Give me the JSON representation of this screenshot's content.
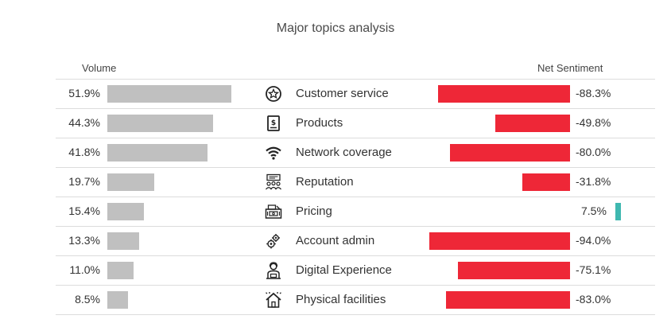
{
  "colors": {
    "volume_bar": "#c0c0c0",
    "negative": "#ee2737",
    "positive": "#3fb8b0",
    "divider": "#dcdcdc"
  },
  "chart_data": {
    "type": "bar",
    "title": "Major topics analysis",
    "volume_header": "Volume",
    "sentiment_header": "Net Sentiment",
    "categories": [
      "Customer service",
      "Products",
      "Network coverage",
      "Reputation",
      "Pricing",
      "Account admin",
      "Digital Experience",
      "Physical facilities"
    ],
    "icons": [
      "star-badge-icon",
      "receipt-icon",
      "wifi-icon",
      "people-monitor-icon",
      "cash-register-icon",
      "gears-icon",
      "agent-icon",
      "house-icon"
    ],
    "series": [
      {
        "name": "Volume",
        "values": [
          51.9,
          44.3,
          41.8,
          19.7,
          15.4,
          13.3,
          11.0,
          8.5
        ],
        "labels": [
          "51.9%",
          "44.3%",
          "41.8%",
          "19.7%",
          "15.4%",
          "13.3%",
          "11.0%",
          "8.5%"
        ],
        "range": [
          0,
          55
        ]
      },
      {
        "name": "Net Sentiment",
        "values": [
          -88.3,
          -49.8,
          -80.0,
          -31.8,
          7.5,
          -94.0,
          -75.1,
          -83.0
        ],
        "labels": [
          "-88.3%",
          "-49.8%",
          "-80.0%",
          "-31.8%",
          "7.5%",
          "-94.0%",
          "-75.1%",
          "-83.0%"
        ],
        "range": [
          -100,
          10
        ]
      }
    ]
  }
}
